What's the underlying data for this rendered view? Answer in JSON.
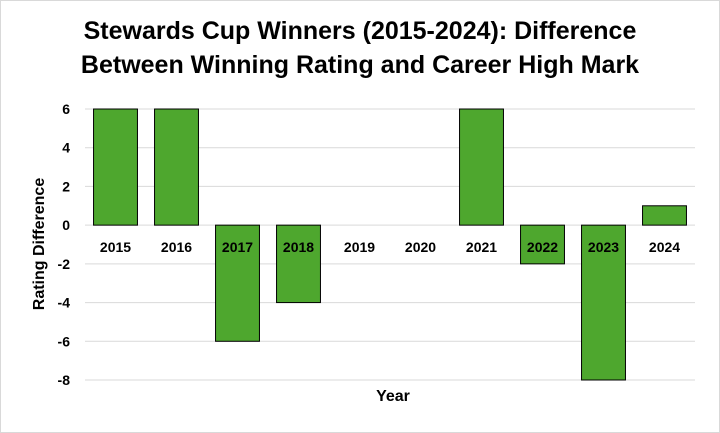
{
  "chart_data": {
    "type": "bar",
    "title_line1": "Stewards Cup Winners (2015-2024): Difference",
    "title_line2": "Between Winning Rating and Career High Mark",
    "xlabel": "Year",
    "ylabel": "Rating Difference",
    "categories": [
      "2015",
      "2016",
      "2017",
      "2018",
      "2019",
      "2020",
      "2021",
      "2022",
      "2023",
      "2024"
    ],
    "values": [
      6,
      6,
      -6,
      -4,
      null,
      null,
      6,
      -2,
      -8,
      1
    ],
    "ylim": [
      -8,
      6
    ],
    "yticks": [
      "6",
      "4",
      "2",
      "0",
      "-2",
      "-4",
      "-6",
      "-8"
    ],
    "grid": true,
    "bar_color": "#4ea72e",
    "bar_edge_color": "#000000"
  }
}
